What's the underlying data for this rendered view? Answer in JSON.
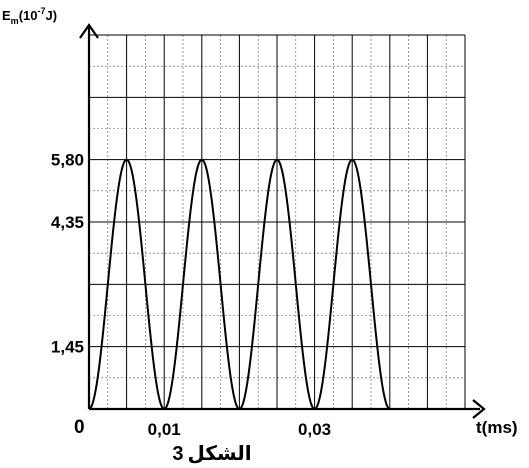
{
  "chart_data": {
    "type": "line",
    "ylabel_main": "E",
    "ylabel_sub": "m",
    "ylabel_unit_prefix": "(10",
    "ylabel_unit_exp": "-7",
    "ylabel_unit_suffix": "J)",
    "xlabel": "t(ms)",
    "origin_label": "0",
    "caption_arabic": "الشكل",
    "caption_number": "3",
    "y_ticks": [
      {
        "value": 5.8,
        "label": "5,80"
      },
      {
        "value": 4.35,
        "label": "4,35"
      },
      {
        "value": 1.45,
        "label": "1,45"
      }
    ],
    "x_ticks": [
      {
        "value": 0.01,
        "label": "0,01"
      },
      {
        "value": 0.03,
        "label": "0,03"
      }
    ],
    "xlim": [
      0,
      0.05
    ],
    "ylim": [
      0,
      8.7
    ],
    "grid": true,
    "minor_grid": true,
    "series": [
      {
        "peak": 5.8,
        "period": 0.01,
        "x_start": 0,
        "x_end": 0.04,
        "shape": "sin-squared"
      }
    ]
  }
}
